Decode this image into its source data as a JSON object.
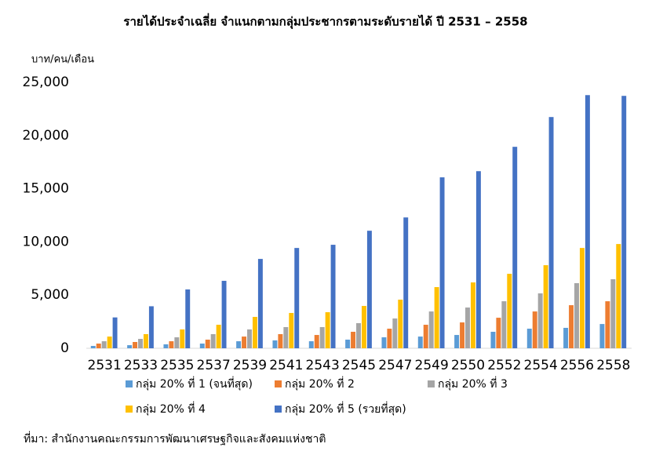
{
  "chart_data": {
    "type": "bar",
    "title": "รายได้ประจำเฉลี่ย จำแนกตามกลุ่มประชากรตามระดับรายได้ ปี 2531 – 2558",
    "y_axis_label": "บาท/คน/เดือน",
    "source": "ที่มา: สำนักงานคณะกรรมการพัฒนาเศรษฐกิจและสังคมแห่งชาติ",
    "categories": [
      "2531",
      "2533",
      "2535",
      "2537",
      "2539",
      "2541",
      "2543",
      "2545",
      "2547",
      "2549",
      "2550",
      "2552",
      "2554",
      "2556",
      "2558"
    ],
    "series": [
      {
        "name": "กลุ่ม 20% ที่ 1 (จนที่สุด)",
        "color": "#5b9bd5",
        "values": [
          220,
          290,
          370,
          440,
          660,
          740,
          660,
          810,
          1030,
          1100,
          1250,
          1550,
          1840,
          1920,
          2280
        ]
      },
      {
        "name": "กลุ่ม 20% ที่ 2",
        "color": "#ed7d31",
        "values": [
          440,
          590,
          660,
          810,
          1100,
          1330,
          1250,
          1550,
          1840,
          2210,
          2430,
          2870,
          3460,
          4050,
          4420
        ]
      },
      {
        "name": "กลุ่ม 20% ที่ 3",
        "color": "#a5a5a5",
        "values": [
          660,
          880,
          1030,
          1330,
          1770,
          1990,
          1990,
          2360,
          2800,
          3460,
          3830,
          4420,
          5160,
          6120,
          6490
        ]
      },
      {
        "name": "กลุ่ม 20% ที่ 4",
        "color": "#ffc000",
        "values": [
          1100,
          1330,
          1770,
          2210,
          2950,
          3320,
          3390,
          3980,
          4570,
          5750,
          6190,
          7000,
          7810,
          9430,
          9800
        ]
      },
      {
        "name": "กลุ่ม 20% ที่ 5 (รวยที่สุด)",
        "color": "#4472c4",
        "values": [
          2900,
          3950,
          5530,
          6340,
          8400,
          9430,
          9730,
          11050,
          12300,
          16070,
          16650,
          18940,
          21740,
          23800,
          23730
        ]
      }
    ],
    "ylim": [
      0,
      25000
    ],
    "yticks": [
      0,
      {
        "value": 5000,
        "label": "5,000"
      },
      {
        "value": 10000,
        "label": "10,000"
      },
      {
        "value": 15000,
        "label": "15,000"
      },
      {
        "value": 20000,
        "label": "20,000"
      },
      {
        "value": 25000,
        "label": "25,000"
      }
    ],
    "grid": false
  }
}
